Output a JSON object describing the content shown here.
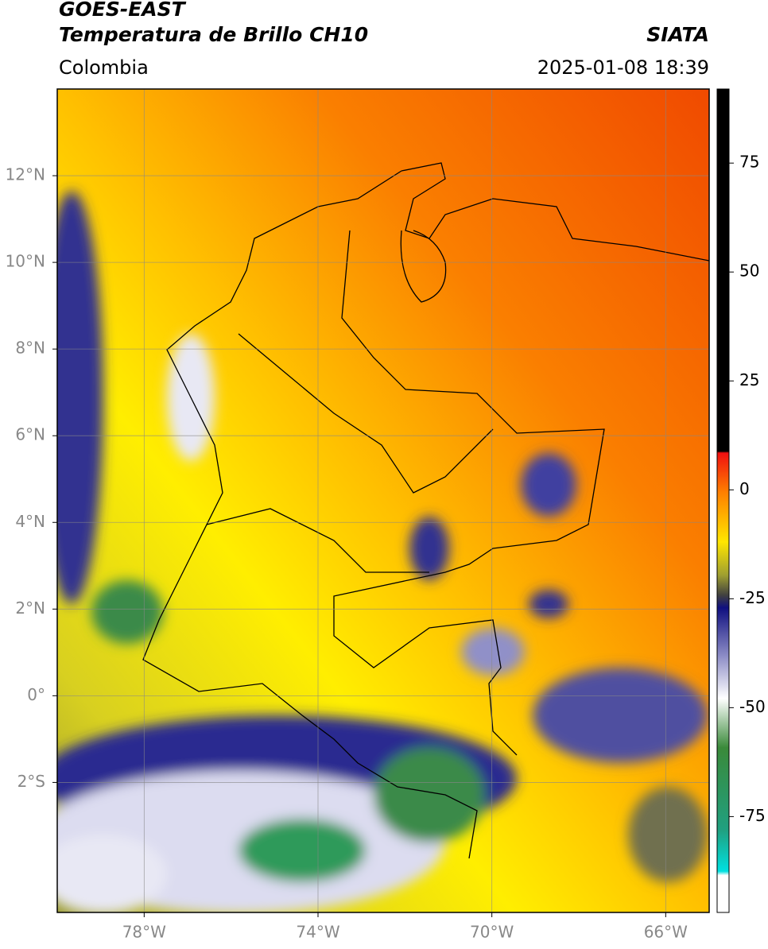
{
  "header": {
    "title": "GOES-EAST",
    "subtitle": "Temperatura de Brillo CH10",
    "region": "Colombia",
    "source": "SIATA",
    "timestamp": "2025-01-08 18:39"
  },
  "map": {
    "lonlim": [
      -80,
      -65
    ],
    "latlim": [
      -5,
      14
    ],
    "lon_ticks": [
      {
        "value": -78,
        "label": "78°W"
      },
      {
        "value": -74,
        "label": "74°W"
      },
      {
        "value": -70,
        "label": "70°W"
      },
      {
        "value": -66,
        "label": "66°W"
      }
    ],
    "lat_ticks": [
      {
        "value": 12,
        "label": "12°N"
      },
      {
        "value": 10,
        "label": "10°N"
      },
      {
        "value": 8,
        "label": "8°N"
      },
      {
        "value": 6,
        "label": "6°N"
      },
      {
        "value": 4,
        "label": "4°N"
      },
      {
        "value": 2,
        "label": "2°N"
      },
      {
        "value": 0,
        "label": "0°"
      },
      {
        "value": -2,
        "label": "2°S"
      }
    ]
  },
  "colorbar": {
    "lim": [
      -97,
      92
    ],
    "ticks": [
      75,
      50,
      25,
      0,
      -25,
      -50,
      -75
    ]
  }
}
